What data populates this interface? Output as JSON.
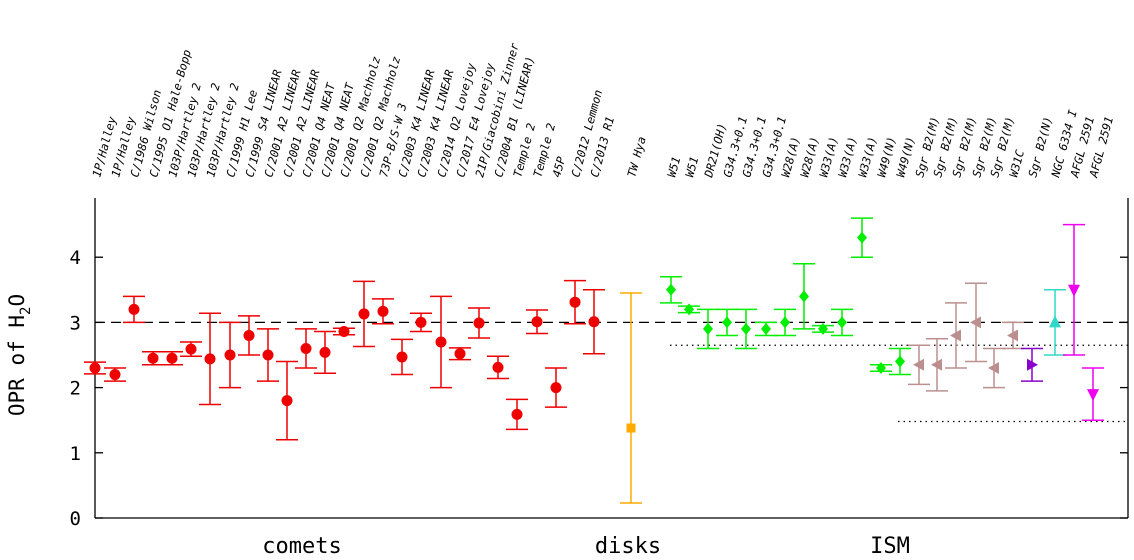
{
  "chart_data": {
    "type": "scatter",
    "title": "",
    "xlabel": "",
    "ylabel": {
      "prefix": "OPR of H",
      "sub": "2",
      "suffix": "O"
    },
    "ylim": [
      0,
      4.8
    ],
    "yticks": [
      "0",
      "1",
      "2",
      "3",
      "4"
    ],
    "group_labels": [
      "comets",
      "disks",
      "ISM"
    ],
    "reference_lines": {
      "dashed": {
        "y": 3.0
      },
      "dotted": [
        {
          "y": 2.65,
          "x_from": "W51"
        },
        {
          "y": 1.48,
          "x_from": "Sgr B2(M)"
        }
      ]
    },
    "series": [
      {
        "group": "comets",
        "marker": "circle",
        "color": "#ee0000",
        "points": [
          {
            "label": "1P/Halley",
            "y": 2.3,
            "lo": 2.21,
            "hi": 2.39
          },
          {
            "label": "1P/Halley",
            "y": 2.2,
            "lo": 2.1,
            "hi": 2.3
          },
          {
            "label": "C/1986 Wilson",
            "y": 3.2,
            "lo": 3.0,
            "hi": 3.4
          },
          {
            "label": "C/1995 O1 Hale-Bopp",
            "y": 2.45,
            "lo": 2.35,
            "hi": 2.55
          },
          {
            "label": "103P/Hartley 2",
            "y": 2.45,
            "lo": 2.35,
            "hi": 2.55
          },
          {
            "label": "103P/Hartley 2",
            "y": 2.59,
            "lo": 2.48,
            "hi": 2.7
          },
          {
            "label": "103P/Hartley 2",
            "y": 2.44,
            "lo": 1.74,
            "hi": 3.14
          },
          {
            "label": "C/1999 H1 Lee",
            "y": 2.5,
            "lo": 2.0,
            "hi": 3.0
          },
          {
            "label": "C/1999 S4 LINEAR",
            "y": 2.8,
            "lo": 2.5,
            "hi": 3.1
          },
          {
            "label": "C/2001 A2 LINEAR",
            "y": 2.5,
            "lo": 2.1,
            "hi": 2.9
          },
          {
            "label": "C/2001 A2 LINEAR",
            "y": 1.8,
            "lo": 1.2,
            "hi": 2.4
          },
          {
            "label": "C/2001 Q4 NEAT",
            "y": 2.6,
            "lo": 2.3,
            "hi": 2.9
          },
          {
            "label": "C/2001 Q4 NEAT",
            "y": 2.54,
            "lo": 2.22,
            "hi": 2.86
          },
          {
            "label": "C/2001 Q2 Machholz",
            "y": 2.86,
            "lo": 2.81,
            "hi": 2.91
          },
          {
            "label": "C/2001 Q2 Machholz",
            "y": 3.13,
            "lo": 2.63,
            "hi": 3.63
          },
          {
            "label": "73P-B/S-W 3",
            "y": 3.17,
            "lo": 2.98,
            "hi": 3.36
          },
          {
            "label": "C/2003 K4 LINEAR",
            "y": 2.47,
            "lo": 2.2,
            "hi": 2.74
          },
          {
            "label": "C/2003 K4 LINEAR",
            "y": 3.0,
            "lo": 2.86,
            "hi": 3.14
          },
          {
            "label": "C/2014 Q2 Lovejoy",
            "y": 2.7,
            "lo": 2.0,
            "hi": 3.4
          },
          {
            "label": "C/2017 E4 Lovejoy",
            "y": 2.52,
            "lo": 2.43,
            "hi": 2.61
          },
          {
            "label": "21P/Giacobini Zinner",
            "y": 2.99,
            "lo": 2.76,
            "hi": 3.22
          },
          {
            "label": "C/2004 B1 (LINEAR)",
            "y": 2.31,
            "lo": 2.14,
            "hi": 2.48
          },
          {
            "label": "Temple 2",
            "y": 1.59,
            "lo": 1.36,
            "hi": 1.82
          },
          {
            "label": "Temple 2",
            "y": 3.01,
            "lo": 2.83,
            "hi": 3.19
          },
          {
            "label": "45P",
            "y": 2.0,
            "lo": 1.7,
            "hi": 2.3
          },
          {
            "label": "C/2012 Lemmon",
            "y": 3.31,
            "lo": 2.98,
            "hi": 3.64
          },
          {
            "label": "C/2013 R1",
            "y": 3.01,
            "lo": 2.52,
            "hi": 3.5
          }
        ]
      },
      {
        "group": "disks",
        "marker": "square",
        "color": "#ffaa00",
        "points": [
          {
            "label": "TW Hya",
            "y": 1.38,
            "lo": 0.23,
            "hi": 3.45
          }
        ]
      },
      {
        "group": "ISM",
        "marker": "diamond",
        "color": "#00ee00",
        "points": [
          {
            "label": "W51",
            "y": 3.5,
            "lo": 3.3,
            "hi": 3.7
          },
          {
            "label": "W51",
            "y": 3.2,
            "lo": 3.15,
            "hi": 3.25
          },
          {
            "label": "DR21(OH)",
            "y": 2.9,
            "lo": 2.6,
            "hi": 3.2
          },
          {
            "label": "G34.3+0.1",
            "y": 3.0,
            "lo": 2.8,
            "hi": 3.2
          },
          {
            "label": "G34.3+0.1",
            "y": 2.9,
            "lo": 2.6,
            "hi": 3.2
          },
          {
            "label": "G34.3+0.1",
            "y": 2.9,
            "lo": 2.8,
            "hi": 3.0
          },
          {
            "label": "W28(A)",
            "y": 3.0,
            "lo": 2.8,
            "hi": 3.2
          },
          {
            "label": "W28(A)",
            "y": 3.4,
            "lo": 2.9,
            "hi": 3.9
          },
          {
            "label": "W33(A)",
            "y": 2.9,
            "lo": 2.85,
            "hi": 2.95
          },
          {
            "label": "W33(A)",
            "y": 3.0,
            "lo": 2.8,
            "hi": 3.2
          },
          {
            "label": "W33(A)",
            "y": 4.3,
            "lo": 4.0,
            "hi": 4.6
          },
          {
            "label": "W49(N)",
            "y": 2.3,
            "lo": 2.25,
            "hi": 2.35
          },
          {
            "label": "W49(N)",
            "y": 2.4,
            "lo": 2.2,
            "hi": 2.6
          }
        ]
      },
      {
        "group": "ISM",
        "marker": "triangle-left",
        "color": "#bc8f8f",
        "points": [
          {
            "label": "Sgr B2(M)",
            "y": 2.35,
            "lo": 2.05,
            "hi": 2.65
          },
          {
            "label": "Sgr B2(M)",
            "y": 2.35,
            "lo": 1.95,
            "hi": 2.75
          },
          {
            "label": "Sgr B2(M)",
            "y": 2.8,
            "lo": 2.3,
            "hi": 3.3
          },
          {
            "label": "Sgr B2(M)",
            "y": 3.0,
            "lo": 2.4,
            "hi": 3.6
          },
          {
            "label": "Sgr B2(M)",
            "y": 2.3,
            "lo": 2.0,
            "hi": 2.6
          },
          {
            "label": "W31C",
            "y": 2.8,
            "lo": 2.6,
            "hi": 3.0
          }
        ]
      },
      {
        "group": "ISM",
        "marker": "triangle-right",
        "color": "#8800cc",
        "points": [
          {
            "label": "Sgr B2(N)",
            "y": 2.35,
            "lo": 2.1,
            "hi": 2.6
          }
        ]
      },
      {
        "group": "ISM",
        "marker": "triangle-up",
        "color": "#30d8c8",
        "points": [
          {
            "label": "NGC 6334 I",
            "y": 3.0,
            "lo": 2.5,
            "hi": 3.5
          }
        ]
      },
      {
        "group": "ISM",
        "marker": "triangle-down",
        "color": "#ee00ee",
        "points": [
          {
            "label": "AFGL 2591",
            "y": 3.5,
            "lo": 2.5,
            "hi": 4.5
          },
          {
            "label": "AFGL 2591",
            "y": 1.9,
            "lo": 1.5,
            "hi": 2.3
          }
        ]
      }
    ]
  }
}
